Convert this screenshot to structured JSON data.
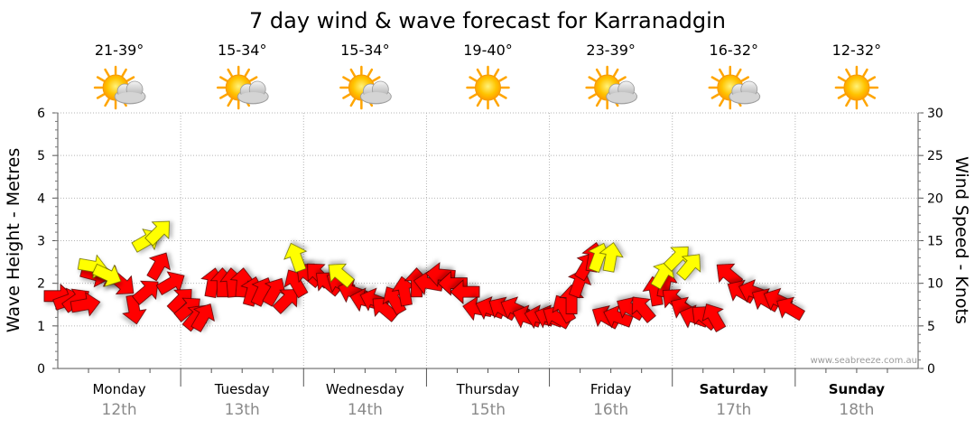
{
  "chart_data": {
    "type": "line",
    "title": "7 day wind & wave forecast for Karranadgin",
    "ylabel_left": "Wave Height - Metres",
    "ylabel_right": "Wind Speed - Knots",
    "ylim_left": [
      0,
      6
    ],
    "ylim_right": [
      0,
      30
    ],
    "yticks_left": [
      "0",
      "1",
      "2",
      "3",
      "4",
      "5",
      "6"
    ],
    "yticks_right": [
      "0",
      "5",
      "10",
      "15",
      "20",
      "25",
      "30"
    ],
    "grid": true,
    "watermark": "www.seabreeze.com.au",
    "days": [
      {
        "day": "Monday",
        "date": "12th",
        "temp": "21-39°",
        "weather": "partly-cloudy-icon",
        "bold": false
      },
      {
        "day": "Tuesday",
        "date": "13th",
        "temp": "15-34°",
        "weather": "partly-cloudy-icon",
        "bold": false
      },
      {
        "day": "Wednesday",
        "date": "14th",
        "temp": "15-34°",
        "weather": "partly-cloudy-icon",
        "bold": false
      },
      {
        "day": "Thursday",
        "date": "15th",
        "temp": "19-40°",
        "weather": "sunny-icon",
        "bold": false
      },
      {
        "day": "Friday",
        "date": "16th",
        "temp": "23-39°",
        "weather": "partly-cloudy-icon",
        "bold": false
      },
      {
        "day": "Saturday",
        "date": "17th",
        "temp": "16-32°",
        "weather": "partly-cloudy-icon",
        "bold": true
      },
      {
        "day": "Sunday",
        "date": "18th",
        "temp": "12-32°",
        "weather": "sunny-icon",
        "bold": true
      }
    ],
    "series": [
      {
        "name": "wind",
        "color": "#ff0000",
        "gust_color": "#ffff00",
        "points": [
          {
            "t": 0.0,
            "v": 8.5,
            "dir": 0
          },
          {
            "t": 0.08,
            "v": 8,
            "dir": -20
          },
          {
            "t": 0.15,
            "v": 8,
            "dir": -35
          },
          {
            "t": 0.22,
            "v": 7.5,
            "dir": -10
          },
          {
            "t": 0.3,
            "v": 11,
            "dir": 15
          },
          {
            "t": 0.4,
            "v": 11,
            "dir": 30
          },
          {
            "t": 0.52,
            "v": 10,
            "dir": 40
          },
          {
            "t": 0.62,
            "v": 7,
            "dir": 80
          },
          {
            "t": 0.72,
            "v": 9,
            "dir": -40
          },
          {
            "t": 0.82,
            "v": 12,
            "dir": -60
          },
          {
            "t": 0.92,
            "v": 10,
            "dir": -30
          },
          {
            "t": 1.0,
            "v": 8,
            "dir": -45
          },
          {
            "t": 1.06,
            "v": 7,
            "dir": -40
          },
          {
            "t": 1.12,
            "v": 6,
            "dir": -50
          },
          {
            "t": 1.18,
            "v": 6,
            "dir": -60
          },
          {
            "t": 1.26,
            "v": 10,
            "dir": -80
          },
          {
            "t": 1.34,
            "v": 10,
            "dir": -90
          },
          {
            "t": 1.42,
            "v": 10,
            "dir": -95
          },
          {
            "t": 1.5,
            "v": 10,
            "dir": -85
          },
          {
            "t": 1.58,
            "v": 9,
            "dir": -75
          },
          {
            "t": 1.66,
            "v": 9,
            "dir": -65
          },
          {
            "t": 1.76,
            "v": 9,
            "dir": -60
          },
          {
            "t": 1.86,
            "v": 8,
            "dir": -45
          },
          {
            "t": 1.94,
            "v": 10,
            "dir": -120
          },
          {
            "t": 2.04,
            "v": 11,
            "dir": -140
          },
          {
            "t": 2.12,
            "v": 11,
            "dir": -135
          },
          {
            "t": 2.2,
            "v": 10,
            "dir": -140
          },
          {
            "t": 2.3,
            "v": 10,
            "dir": -150
          },
          {
            "t": 2.4,
            "v": 9,
            "dir": -160
          },
          {
            "t": 2.5,
            "v": 8,
            "dir": -165
          },
          {
            "t": 2.58,
            "v": 8,
            "dir": -160
          },
          {
            "t": 2.66,
            "v": 7,
            "dir": -140
          },
          {
            "t": 2.74,
            "v": 8,
            "dir": -120
          },
          {
            "t": 2.82,
            "v": 9,
            "dir": -100
          },
          {
            "t": 2.92,
            "v": 10,
            "dir": -90
          },
          {
            "t": 3.02,
            "v": 10,
            "dir": -170
          },
          {
            "t": 3.12,
            "v": 11,
            "dir": -175
          },
          {
            "t": 3.22,
            "v": 10,
            "dir": -180
          },
          {
            "t": 3.32,
            "v": 9,
            "dir": -180
          },
          {
            "t": 3.42,
            "v": 7,
            "dir": -170
          },
          {
            "t": 3.52,
            "v": 7,
            "dir": -160
          },
          {
            "t": 3.62,
            "v": 7,
            "dir": -150
          },
          {
            "t": 3.72,
            "v": 7,
            "dir": -155
          },
          {
            "t": 3.82,
            "v": 6,
            "dir": -160
          },
          {
            "t": 3.92,
            "v": 6,
            "dir": -165
          },
          {
            "t": 4.0,
            "v": 6,
            "dir": -160
          },
          {
            "t": 4.06,
            "v": 6,
            "dir": -150
          },
          {
            "t": 4.12,
            "v": 7,
            "dir": -120
          },
          {
            "t": 4.18,
            "v": 8,
            "dir": -90
          },
          {
            "t": 4.24,
            "v": 10,
            "dir": -70
          },
          {
            "t": 4.3,
            "v": 12,
            "dir": -60
          },
          {
            "t": 4.36,
            "v": 13,
            "dir": -80
          },
          {
            "t": 4.46,
            "v": 6,
            "dir": -150
          },
          {
            "t": 4.56,
            "v": 6,
            "dir": -160
          },
          {
            "t": 4.66,
            "v": 7,
            "dir": -150
          },
          {
            "t": 4.76,
            "v": 7,
            "dir": -130
          },
          {
            "t": 4.86,
            "v": 9,
            "dir": -100
          },
          {
            "t": 4.94,
            "v": 10,
            "dir": -80
          },
          {
            "t": 5.02,
            "v": 8,
            "dir": -140
          },
          {
            "t": 5.1,
            "v": 7,
            "dir": -150
          },
          {
            "t": 5.18,
            "v": 6,
            "dir": -160
          },
          {
            "t": 5.26,
            "v": 6,
            "dir": -140
          },
          {
            "t": 5.34,
            "v": 6,
            "dir": -120
          },
          {
            "t": 5.46,
            "v": 11,
            "dir": -140
          },
          {
            "t": 5.56,
            "v": 9,
            "dir": -150
          },
          {
            "t": 5.66,
            "v": 9,
            "dir": -160
          },
          {
            "t": 5.76,
            "v": 8,
            "dir": -150
          },
          {
            "t": 5.86,
            "v": 8,
            "dir": -155
          },
          {
            "t": 5.96,
            "v": 7,
            "dir": -150
          }
        ]
      },
      {
        "name": "gust",
        "points": [
          {
            "t": 0.28,
            "v": 12,
            "dir": 10
          },
          {
            "t": 0.4,
            "v": 11,
            "dir": 25
          },
          {
            "t": 0.72,
            "v": 15,
            "dir": -30
          },
          {
            "t": 0.82,
            "v": 16,
            "dir": -45
          },
          {
            "t": 1.94,
            "v": 13,
            "dir": -110
          },
          {
            "t": 2.3,
            "v": 11,
            "dir": -140
          },
          {
            "t": 4.4,
            "v": 13,
            "dir": -70
          },
          {
            "t": 4.5,
            "v": 13,
            "dir": -80
          },
          {
            "t": 4.92,
            "v": 11,
            "dir": -60
          },
          {
            "t": 5.04,
            "v": 13,
            "dir": -45
          },
          {
            "t": 5.14,
            "v": 12,
            "dir": -50
          }
        ]
      }
    ]
  }
}
